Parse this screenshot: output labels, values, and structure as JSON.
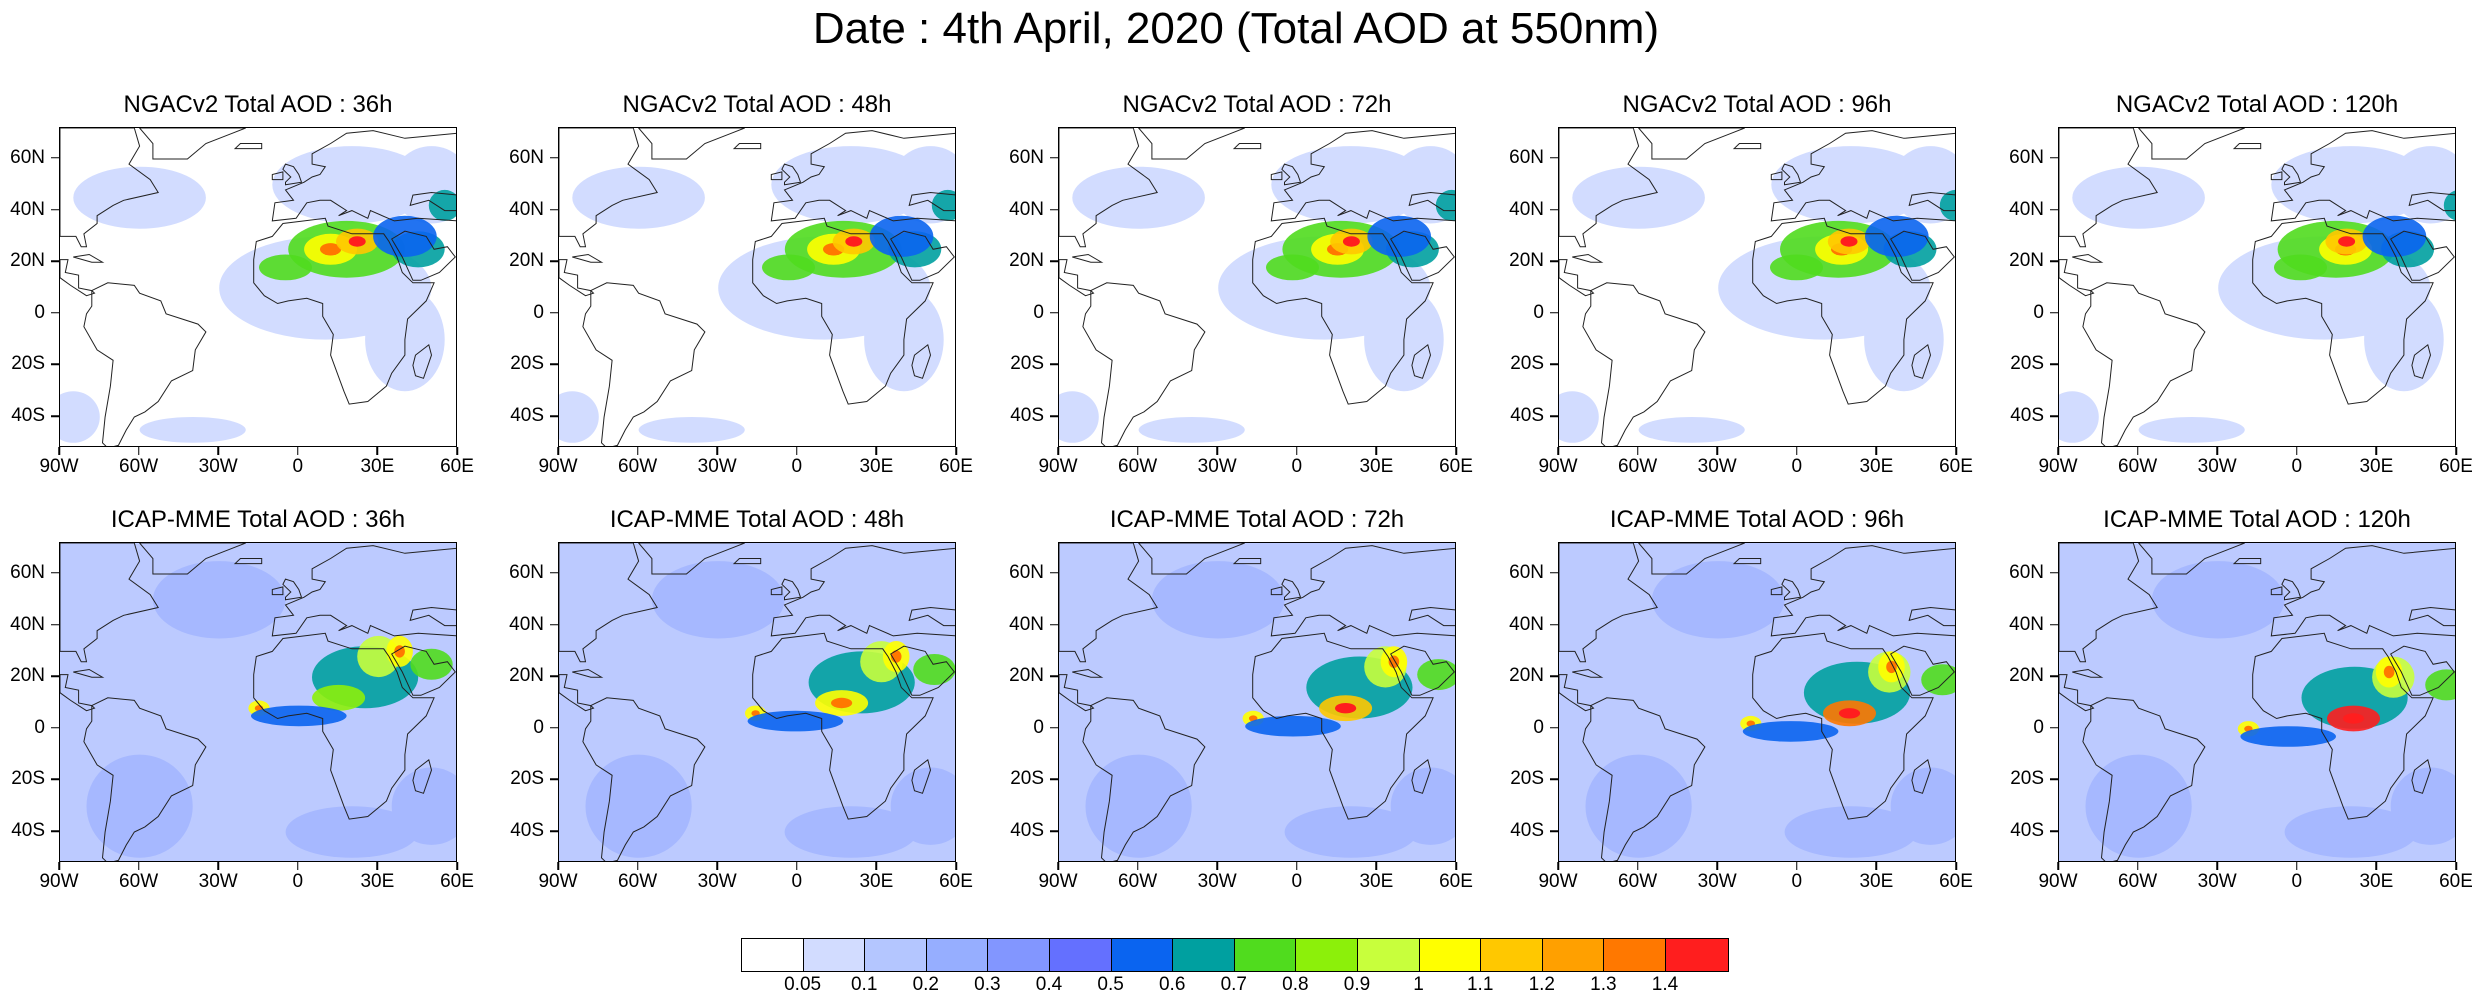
{
  "title": "Date : 4th April, 2020 (Total AOD at 550nm)",
  "panels": [
    {
      "title": "NGACv2 Total AOD : 36h",
      "model": "NGACv2",
      "lead": "36h"
    },
    {
      "title": "NGACv2 Total AOD : 48h",
      "model": "NGACv2",
      "lead": "48h"
    },
    {
      "title": "NGACv2 Total AOD : 72h",
      "model": "NGACv2",
      "lead": "72h"
    },
    {
      "title": "NGACv2 Total AOD : 96h",
      "model": "NGACv2",
      "lead": "96h"
    },
    {
      "title": "NGACv2 Total AOD : 120h",
      "model": "NGACv2",
      "lead": "120h"
    },
    {
      "title": "ICAP-MME Total AOD : 36h",
      "model": "ICAP-MME",
      "lead": "36h"
    },
    {
      "title": "ICAP-MME Total AOD : 48h",
      "model": "ICAP-MME",
      "lead": "48h"
    },
    {
      "title": "ICAP-MME Total AOD : 72h",
      "model": "ICAP-MME",
      "lead": "72h"
    },
    {
      "title": "ICAP-MME Total AOD : 96h",
      "model": "ICAP-MME",
      "lead": "96h"
    },
    {
      "title": "ICAP-MME Total AOD : 120h",
      "model": "ICAP-MME",
      "lead": "120h"
    }
  ],
  "axes": {
    "lat_labels": [
      "60N",
      "40N",
      "20N",
      "0",
      "20S",
      "40S"
    ],
    "lat_values": [
      60,
      40,
      20,
      0,
      -20,
      -40
    ],
    "lon_labels": [
      "90W",
      "60W",
      "30W",
      "0",
      "30E",
      "60E"
    ],
    "lon_values": [
      -90,
      -60,
      -30,
      0,
      30,
      60
    ],
    "lat_range": [
      -52,
      72
    ],
    "lon_range": [
      -90,
      60
    ]
  },
  "colorbar": {
    "labels": [
      "0.05",
      "0.1",
      "0.2",
      "0.3",
      "0.4",
      "0.5",
      "0.6",
      "0.7",
      "0.8",
      "0.9",
      "1",
      "1.1",
      "1.2",
      "1.3",
      "1.4"
    ],
    "colors": [
      "#ffffff",
      "#d2dcff",
      "#b4c6ff",
      "#96aeff",
      "#8296ff",
      "#6470ff",
      "#0a64f0",
      "#00a0a0",
      "#50dc1e",
      "#8cf00a",
      "#c8ff3c",
      "#ffff00",
      "#ffc800",
      "#ffa000",
      "#ff7800",
      "#ff1e1e"
    ]
  }
}
